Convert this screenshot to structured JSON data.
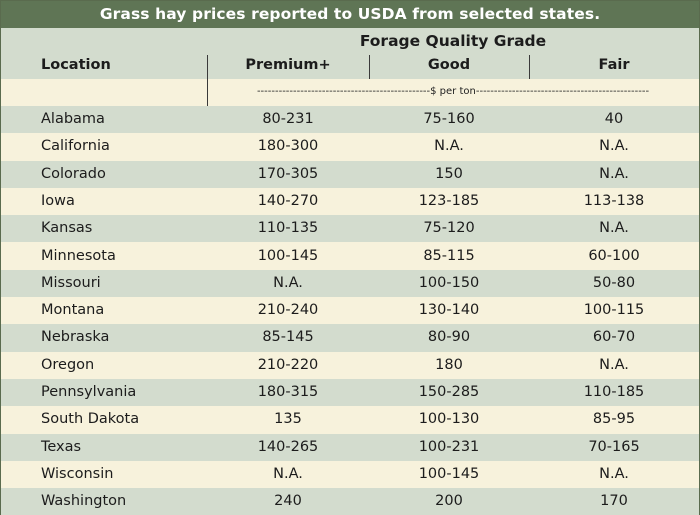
{
  "title": "Grass hay prices reported to USDA from selected states.",
  "header": {
    "group_label": "Forage Quality Grade",
    "location_label": "Location",
    "columns": [
      "Premium+",
      "Good",
      "Fair"
    ]
  },
  "unit_label": "------------------------------------------------$ per ton------------------------------------------------",
  "rows": [
    {
      "location": "Alabama",
      "premium": "80-231",
      "good": "75-160",
      "fair": "40"
    },
    {
      "location": "California",
      "premium": "180-300",
      "good": "N.A.",
      "fair": "N.A."
    },
    {
      "location": "Colorado",
      "premium": "170-305",
      "good": "150",
      "fair": "N.A."
    },
    {
      "location": "Iowa",
      "premium": "140-270",
      "good": "123-185",
      "fair": "113-138"
    },
    {
      "location": "Kansas",
      "premium": "110-135",
      "good": "75-120",
      "fair": "N.A."
    },
    {
      "location": "Minnesota",
      "premium": "100-145",
      "good": "85-115",
      "fair": "60-100"
    },
    {
      "location": "Missouri",
      "premium": "N.A.",
      "good": "100-150",
      "fair": "50-80"
    },
    {
      "location": "Montana",
      "premium": "210-240",
      "good": "130-140",
      "fair": "100-115"
    },
    {
      "location": "Nebraska",
      "premium": "85-145",
      "good": "80-90",
      "fair": "60-70"
    },
    {
      "location": "Oregon",
      "premium": "210-220",
      "good": "180",
      "fair": "N.A."
    },
    {
      "location": "Pennsylvania",
      "premium": "180-315",
      "good": "150-285",
      "fair": "110-185"
    },
    {
      "location": "South Dakota",
      "premium": "135",
      "good": "100-130",
      "fair": "85-95"
    },
    {
      "location": "Texas",
      "premium": "140-265",
      "good": "100-231",
      "fair": "70-165"
    },
    {
      "location": "Wisconsin",
      "premium": "N.A.",
      "good": "100-145",
      "fair": "N.A."
    },
    {
      "location": "Washington",
      "premium": "240",
      "good": "200",
      "fair": "170"
    }
  ]
}
